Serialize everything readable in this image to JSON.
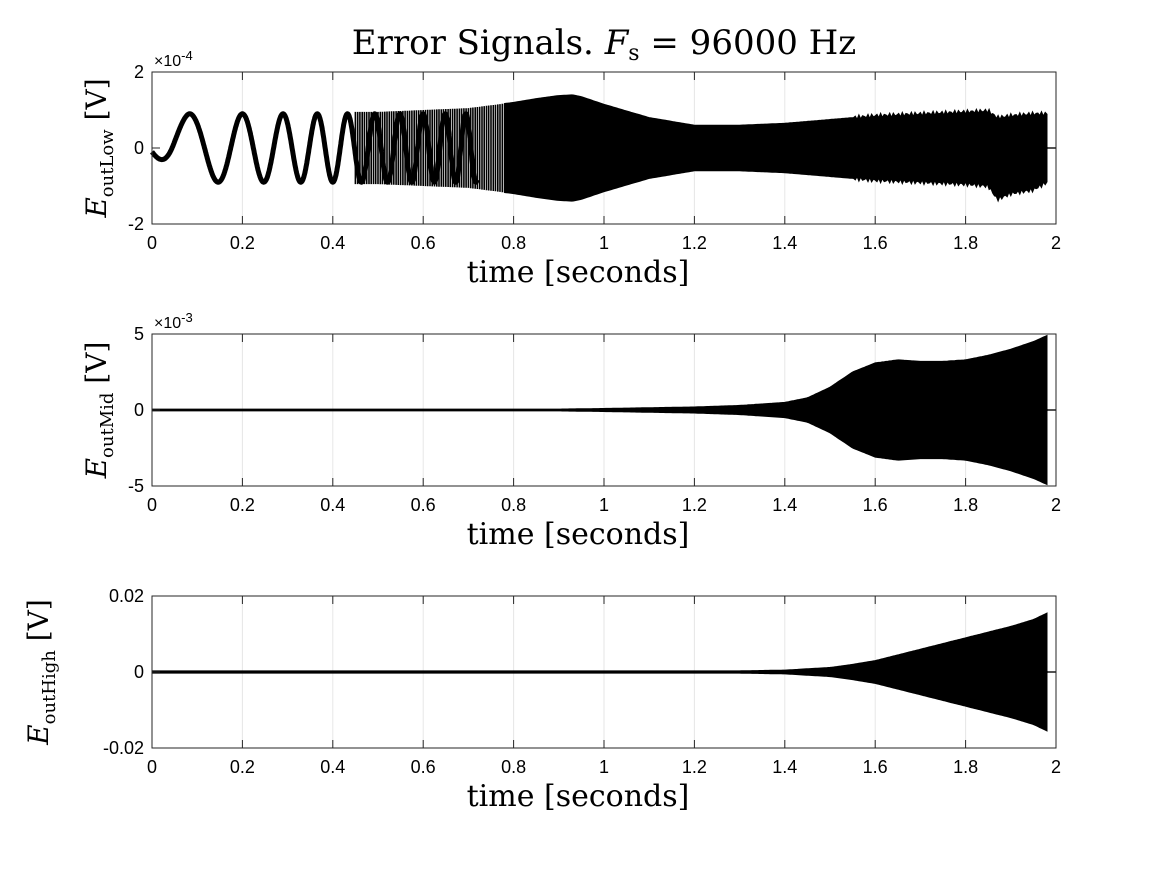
{
  "figure": {
    "title_main": "Error Signals. ",
    "title_var": "F",
    "title_sub": "s",
    "title_rest": " = 96000 Hz"
  },
  "chart_data": [
    {
      "type": "line",
      "xlabel": "time [seconds]",
      "ylabel_var": "E",
      "ylabel_sub": "outLow",
      "ylabel_unit": "[V]",
      "xlim": [
        0,
        2
      ],
      "ylim": [
        -2,
        2
      ],
      "y_exponent_label": "×10",
      "y_exponent_power": "-4",
      "xticks": [
        "0",
        "0.2",
        "0.4",
        "0.6",
        "0.8",
        "1",
        "1.2",
        "1.4",
        "1.6",
        "1.8",
        "2"
      ],
      "yticks": [
        "-2",
        "0",
        "2"
      ],
      "grid": "x",
      "series": [
        {
          "color": "#000000",
          "envelope": {
            "t": [
              0,
              0.05,
              0.1,
              0.15,
              0.2,
              0.3,
              0.4,
              0.5,
              0.6,
              0.7,
              0.8,
              0.85,
              0.9,
              0.93,
              0.95,
              1.0,
              1.1,
              1.2,
              1.3,
              1.4,
              1.5,
              1.6,
              1.7,
              1.8,
              1.85,
              1.87,
              1.9,
              1.95,
              1.98
            ],
            "upper": [
              0.2,
              0.8,
              0.95,
              0.95,
              0.95,
              0.95,
              0.95,
              0.95,
              1.0,
              1.05,
              1.2,
              1.3,
              1.38,
              1.4,
              1.35,
              1.15,
              0.8,
              0.6,
              0.6,
              0.65,
              0.75,
              0.85,
              0.9,
              0.95,
              0.98,
              0.8,
              0.85,
              0.9,
              0.9
            ],
            "lower": [
              -0.2,
              -0.8,
              -0.95,
              -0.95,
              -0.95,
              -0.95,
              -0.95,
              -0.95,
              -1.0,
              -1.05,
              -1.2,
              -1.3,
              -1.38,
              -1.4,
              -1.35,
              -1.15,
              -0.8,
              -0.6,
              -0.6,
              -0.65,
              -0.75,
              -0.85,
              -0.9,
              -0.95,
              -1.0,
              -1.35,
              -1.2,
              -1.1,
              -0.9
            ]
          },
          "chirp": {
            "amplitude": 0.9,
            "start_freq_hz": 5,
            "freq_rate_hz_per_s": 25,
            "visible_until_s": 0.72
          }
        }
      ]
    },
    {
      "type": "line",
      "xlabel": "time [seconds]",
      "ylabel_var": "E",
      "ylabel_sub": "outMid",
      "ylabel_unit": "[V]",
      "xlim": [
        0,
        2
      ],
      "ylim": [
        -5,
        5
      ],
      "y_exponent_label": "×10",
      "y_exponent_power": "-3",
      "xticks": [
        "0",
        "0.2",
        "0.4",
        "0.6",
        "0.8",
        "1",
        "1.2",
        "1.4",
        "1.6",
        "1.8",
        "2"
      ],
      "yticks": [
        "-5",
        "0",
        "5"
      ],
      "grid": "x",
      "series": [
        {
          "color": "#000000",
          "envelope": {
            "t": [
              0,
              0.5,
              0.9,
              1.0,
              1.1,
              1.2,
              1.3,
              1.4,
              1.45,
              1.5,
              1.55,
              1.6,
              1.65,
              1.7,
              1.75,
              1.8,
              1.85,
              1.9,
              1.95,
              1.98
            ],
            "upper": [
              0.06,
              0.06,
              0.06,
              0.1,
              0.15,
              0.2,
              0.3,
              0.5,
              0.8,
              1.5,
              2.5,
              3.1,
              3.3,
              3.2,
              3.2,
              3.3,
              3.6,
              4.0,
              4.5,
              4.9
            ],
            "lower": [
              -0.06,
              -0.06,
              -0.06,
              -0.1,
              -0.15,
              -0.2,
              -0.3,
              -0.5,
              -0.8,
              -1.5,
              -2.5,
              -3.1,
              -3.3,
              -3.2,
              -3.2,
              -3.3,
              -3.6,
              -4.0,
              -4.5,
              -4.9
            ]
          }
        }
      ]
    },
    {
      "type": "line",
      "xlabel": "time [seconds]",
      "ylabel_var": "E",
      "ylabel_sub": "outHigh",
      "ylabel_unit": "[V]",
      "xlim": [
        0,
        2
      ],
      "ylim": [
        -0.02,
        0.02
      ],
      "y_exponent_label": "",
      "y_exponent_power": "",
      "xticks": [
        "0",
        "0.2",
        "0.4",
        "0.6",
        "0.8",
        "1",
        "1.2",
        "1.4",
        "1.6",
        "1.8",
        "2"
      ],
      "yticks": [
        "-0.02",
        "0",
        "0.02"
      ],
      "grid": "x",
      "series": [
        {
          "color": "#000000",
          "envelope": {
            "t": [
              0,
              1.0,
              1.3,
              1.4,
              1.5,
              1.55,
              1.6,
              1.65,
              1.7,
              1.75,
              1.8,
              1.85,
              1.9,
              1.95,
              1.98
            ],
            "upper": [
              0.0003,
              0.0003,
              0.0003,
              0.0005,
              0.0012,
              0.002,
              0.003,
              0.0045,
              0.006,
              0.0075,
              0.009,
              0.0105,
              0.012,
              0.0138,
              0.0155
            ],
            "lower": [
              -0.0003,
              -0.0003,
              -0.0003,
              -0.0005,
              -0.0012,
              -0.002,
              -0.003,
              -0.0045,
              -0.006,
              -0.0075,
              -0.009,
              -0.0105,
              -0.012,
              -0.0138,
              -0.0155
            ]
          }
        }
      ]
    }
  ]
}
